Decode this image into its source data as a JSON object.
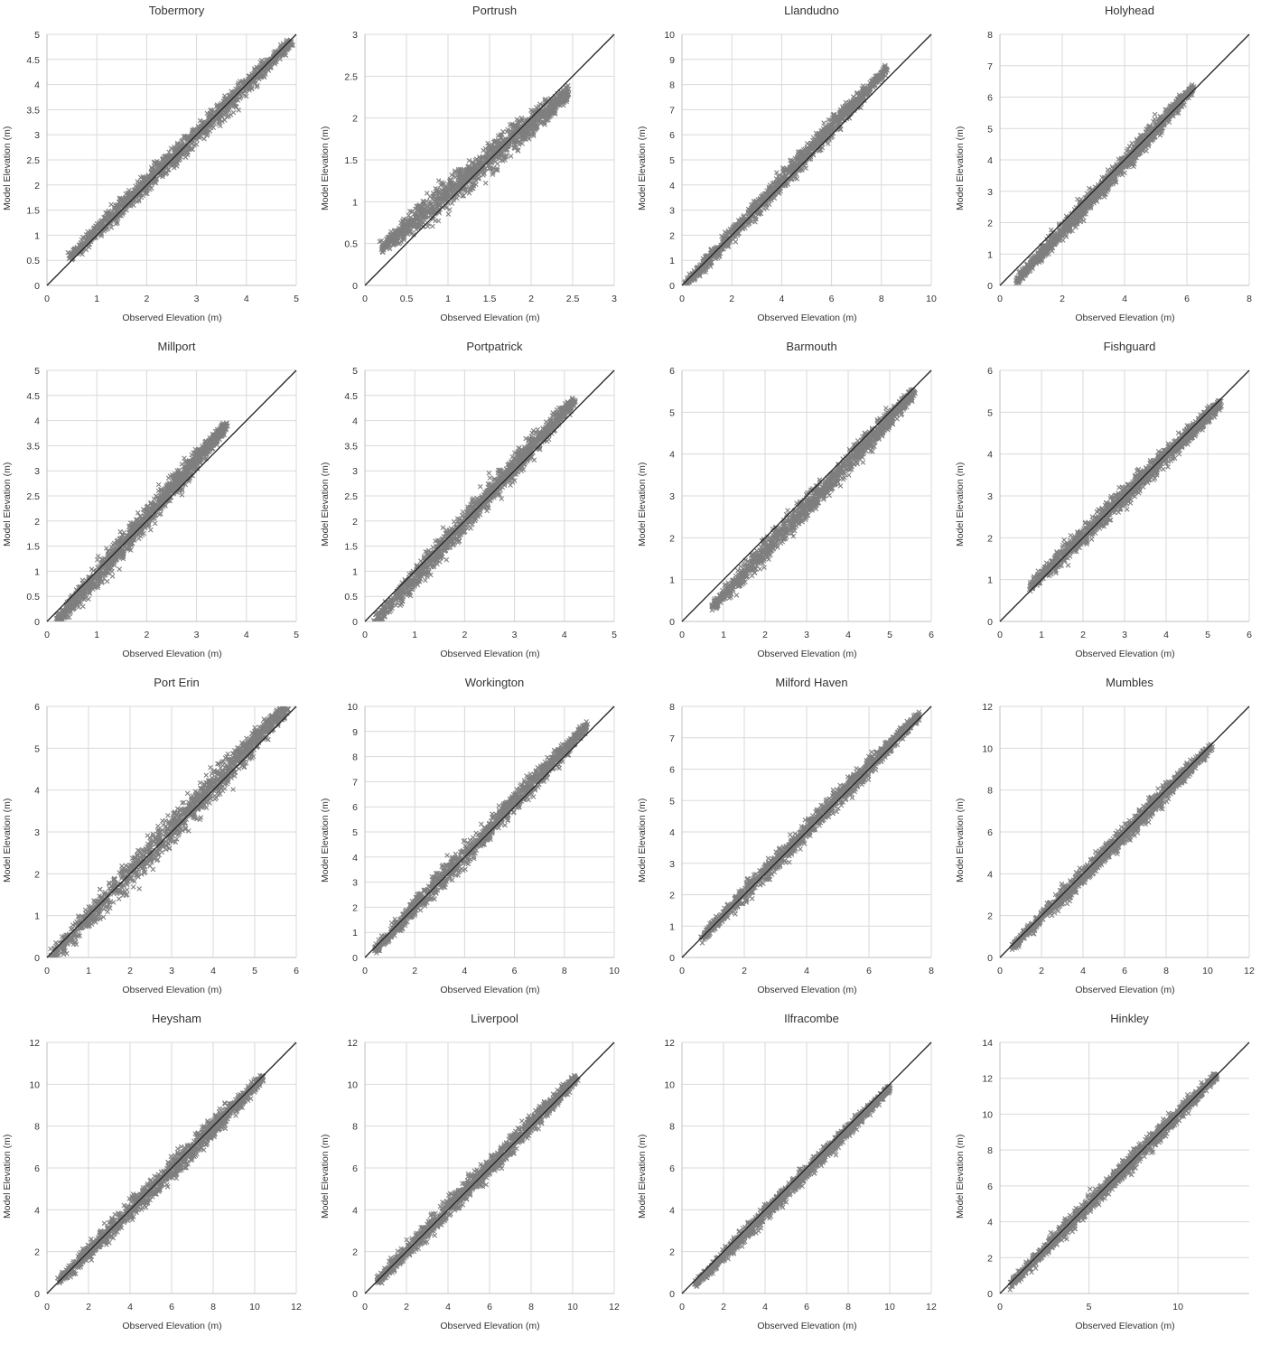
{
  "chart_data": [
    {
      "type": "scatter",
      "title": "Tobermory",
      "xlabel": "Observed Elevation (m)",
      "ylabel": "Model Elevation (m)",
      "xlim": [
        0,
        5
      ],
      "ylim": [
        0,
        5
      ],
      "xticks": [
        "0",
        "1",
        "2",
        "3",
        "4",
        "5"
      ],
      "yticks": [
        "0",
        "0.5",
        "1",
        "1.5",
        "2",
        "2.5",
        "3",
        "3.5",
        "4",
        "4.5",
        "5"
      ],
      "grid": true,
      "marker": "x",
      "color": "#7f7f7f",
      "cloud": {
        "x_range": [
          0.45,
          4.9
        ],
        "y_range": [
          0.55,
          4.85
        ],
        "spread": 0.18
      },
      "reference_line": "1:1"
    },
    {
      "type": "scatter",
      "title": "Portrush",
      "xlabel": "Observed Elevation (m)",
      "ylabel": "Model Elevation (m)",
      "xlim": [
        0,
        3
      ],
      "ylim": [
        0,
        3
      ],
      "xticks": [
        "0",
        "0.5",
        "1",
        "1.5",
        "2",
        "2.5",
        "3"
      ],
      "yticks": [
        "0",
        "0.5",
        "1",
        "1.5",
        "2",
        "2.5",
        "3"
      ],
      "grid": true,
      "marker": "x",
      "color": "#7f7f7f",
      "cloud": {
        "x_range": [
          0.2,
          2.45
        ],
        "y_range": [
          0.45,
          2.3
        ],
        "spread": 0.14
      },
      "reference_line": "1:1"
    },
    {
      "type": "scatter",
      "title": "Llandudno",
      "xlabel": "Observed Elevation (m)",
      "ylabel": "Model Elevation (m)",
      "xlim": [
        0,
        10
      ],
      "ylim": [
        0,
        10
      ],
      "xticks": [
        "0",
        "2",
        "4",
        "6",
        "8",
        "10"
      ],
      "yticks": [
        "0",
        "1",
        "2",
        "3",
        "4",
        "5",
        "6",
        "7",
        "8",
        "9",
        "10"
      ],
      "grid": true,
      "marker": "x",
      "color": "#7f7f7f",
      "cloud": {
        "x_range": [
          0.1,
          8.2
        ],
        "y_range": [
          0.0,
          8.6
        ],
        "spread": 0.3
      },
      "reference_line": "1:1"
    },
    {
      "type": "scatter",
      "title": "Holyhead",
      "xlabel": "Observed Elevation (m)",
      "ylabel": "Model Elevation (m)",
      "xlim": [
        0,
        8
      ],
      "ylim": [
        0,
        8
      ],
      "xticks": [
        "0",
        "2",
        "4",
        "6",
        "8"
      ],
      "yticks": [
        "0",
        "1",
        "2",
        "3",
        "4",
        "5",
        "6",
        "7",
        "8"
      ],
      "grid": true,
      "marker": "x",
      "color": "#7f7f7f",
      "cloud": {
        "x_range": [
          0.5,
          6.2
        ],
        "y_range": [
          0.1,
          6.3
        ],
        "spread": 0.25
      },
      "reference_line": "1:1"
    },
    {
      "type": "scatter",
      "title": "Millport",
      "xlabel": "Observed Elevation (m)",
      "ylabel": "Model Elevation (m)",
      "xlim": [
        0,
        5
      ],
      "ylim": [
        0,
        5
      ],
      "xticks": [
        "0",
        "1",
        "2",
        "3",
        "4",
        "5"
      ],
      "yticks": [
        "0",
        "0.5",
        "1",
        "1.5",
        "2",
        "2.5",
        "3",
        "3.5",
        "4",
        "4.5",
        "5"
      ],
      "grid": true,
      "marker": "x",
      "color": "#7f7f7f",
      "cloud": {
        "x_range": [
          0.2,
          3.6
        ],
        "y_range": [
          0.0,
          3.9
        ],
        "spread": 0.2
      },
      "reference_line": "1:1"
    },
    {
      "type": "scatter",
      "title": "Portpatrick",
      "xlabel": "Observed Elevation (m)",
      "ylabel": "Model Elevation (m)",
      "xlim": [
        0,
        5
      ],
      "ylim": [
        0,
        5
      ],
      "xticks": [
        "0",
        "1",
        "2",
        "3",
        "4",
        "5"
      ],
      "yticks": [
        "0",
        "0.5",
        "1",
        "1.5",
        "2",
        "2.5",
        "3",
        "3.5",
        "4",
        "4.5",
        "5"
      ],
      "grid": true,
      "marker": "x",
      "color": "#7f7f7f",
      "cloud": {
        "x_range": [
          0.2,
          4.2
        ],
        "y_range": [
          0.0,
          4.4
        ],
        "spread": 0.2
      },
      "reference_line": "1:1"
    },
    {
      "type": "scatter",
      "title": "Barmouth",
      "xlabel": "Observed Elevation (m)",
      "ylabel": "Model Elevation (m)",
      "xlim": [
        0,
        6
      ],
      "ylim": [
        0,
        6
      ],
      "xticks": [
        "0",
        "1",
        "2",
        "3",
        "4",
        "5",
        "6"
      ],
      "yticks": [
        "0",
        "1",
        "2",
        "3",
        "4",
        "5",
        "6"
      ],
      "grid": true,
      "marker": "x",
      "color": "#7f7f7f",
      "cloud": {
        "x_range": [
          0.7,
          5.6
        ],
        "y_range": [
          0.3,
          5.5
        ],
        "spread": 0.22
      },
      "reference_line": "1:1"
    },
    {
      "type": "scatter",
      "title": "Fishguard",
      "xlabel": "Observed Elevation (m)",
      "ylabel": "Model Elevation (m)",
      "xlim": [
        0,
        6
      ],
      "ylim": [
        0,
        6
      ],
      "xticks": [
        "0",
        "1",
        "2",
        "3",
        "4",
        "5",
        "6"
      ],
      "yticks": [
        "0",
        "1",
        "2",
        "3",
        "4",
        "5",
        "6"
      ],
      "grid": true,
      "marker": "x",
      "color": "#7f7f7f",
      "cloud": {
        "x_range": [
          0.7,
          5.3
        ],
        "y_range": [
          0.8,
          5.2
        ],
        "spread": 0.2
      },
      "reference_line": "1:1"
    },
    {
      "type": "scatter",
      "title": "Port Erin",
      "xlabel": "Observed Elevation (m)",
      "ylabel": "Model Elevation (m)",
      "xlim": [
        0,
        6
      ],
      "ylim": [
        0,
        6
      ],
      "xticks": [
        "0",
        "1",
        "2",
        "3",
        "4",
        "5",
        "6"
      ],
      "yticks": [
        "0",
        "1",
        "2",
        "3",
        "4",
        "5",
        "6"
      ],
      "grid": true,
      "marker": "x",
      "color": "#7f7f7f",
      "cloud": {
        "x_range": [
          0.1,
          5.8
        ],
        "y_range": [
          0.0,
          6.0
        ],
        "spread": 0.3
      },
      "reference_line": "1:1"
    },
    {
      "type": "scatter",
      "title": "Workington",
      "xlabel": "Observed Elevation (m)",
      "ylabel": "Model Elevation (m)",
      "xlim": [
        0,
        10
      ],
      "ylim": [
        0,
        10
      ],
      "xticks": [
        "0",
        "2",
        "4",
        "6",
        "8",
        "10"
      ],
      "yticks": [
        "0",
        "1",
        "2",
        "3",
        "4",
        "5",
        "6",
        "7",
        "8",
        "9",
        "10"
      ],
      "grid": true,
      "marker": "x",
      "color": "#7f7f7f",
      "cloud": {
        "x_range": [
          0.4,
          8.9
        ],
        "y_range": [
          0.3,
          9.2
        ],
        "spread": 0.35
      },
      "reference_line": "1:1"
    },
    {
      "type": "scatter",
      "title": "Milford Haven",
      "xlabel": "Observed Elevation (m)",
      "ylabel": "Model Elevation (m)",
      "xlim": [
        0,
        8
      ],
      "ylim": [
        0,
        8
      ],
      "xticks": [
        "0",
        "2",
        "4",
        "6",
        "8"
      ],
      "yticks": [
        "0",
        "1",
        "2",
        "3",
        "4",
        "5",
        "6",
        "7",
        "8"
      ],
      "grid": true,
      "marker": "x",
      "color": "#7f7f7f",
      "cloud": {
        "x_range": [
          0.6,
          7.6
        ],
        "y_range": [
          0.6,
          7.7
        ],
        "spread": 0.25
      },
      "reference_line": "1:1"
    },
    {
      "type": "scatter",
      "title": "Mumbles",
      "xlabel": "Observed Elevation (m)",
      "ylabel": "Model Elevation (m)",
      "xlim": [
        0,
        12
      ],
      "ylim": [
        0,
        12
      ],
      "xticks": [
        "0",
        "2",
        "4",
        "6",
        "8",
        "10",
        "12"
      ],
      "yticks": [
        "0",
        "2",
        "4",
        "6",
        "8",
        "10",
        "12"
      ],
      "grid": true,
      "marker": "x",
      "color": "#7f7f7f",
      "cloud": {
        "x_range": [
          0.6,
          10.2
        ],
        "y_range": [
          0.5,
          10.1
        ],
        "spread": 0.35
      },
      "reference_line": "1:1"
    },
    {
      "type": "scatter",
      "title": "Heysham",
      "xlabel": "Observed Elevation (m)",
      "ylabel": "Model Elevation (m)",
      "xlim": [
        0,
        12
      ],
      "ylim": [
        0,
        12
      ],
      "xticks": [
        "0",
        "2",
        "4",
        "6",
        "8",
        "10",
        "12"
      ],
      "yticks": [
        "0",
        "2",
        "4",
        "6",
        "8",
        "10",
        "12"
      ],
      "grid": true,
      "marker": "x",
      "color": "#7f7f7f",
      "cloud": {
        "x_range": [
          0.6,
          10.4
        ],
        "y_range": [
          0.6,
          10.3
        ],
        "spread": 0.4
      },
      "reference_line": "1:1"
    },
    {
      "type": "scatter",
      "title": "Liverpool",
      "xlabel": "Observed Elevation (m)",
      "ylabel": "Model Elevation (m)",
      "xlim": [
        0,
        12
      ],
      "ylim": [
        0,
        12
      ],
      "xticks": [
        "0",
        "2",
        "4",
        "6",
        "8",
        "10",
        "12"
      ],
      "yticks": [
        "0",
        "2",
        "4",
        "6",
        "8",
        "10",
        "12"
      ],
      "grid": true,
      "marker": "x",
      "color": "#7f7f7f",
      "cloud": {
        "x_range": [
          0.6,
          10.2
        ],
        "y_range": [
          0.6,
          10.3
        ],
        "spread": 0.4
      },
      "reference_line": "1:1"
    },
    {
      "type": "scatter",
      "title": "Ilfracombe",
      "xlabel": "Observed Elevation (m)",
      "ylabel": "Model Elevation (m)",
      "xlim": [
        0,
        12
      ],
      "ylim": [
        0,
        12
      ],
      "xticks": [
        "0",
        "2",
        "4",
        "6",
        "8",
        "10",
        "12"
      ],
      "yticks": [
        "0",
        "2",
        "4",
        "6",
        "8",
        "10",
        "12"
      ],
      "grid": true,
      "marker": "x",
      "color": "#7f7f7f",
      "cloud": {
        "x_range": [
          0.6,
          10.0
        ],
        "y_range": [
          0.4,
          9.8
        ],
        "spread": 0.3
      },
      "reference_line": "1:1"
    },
    {
      "type": "scatter",
      "title": "Hinkley",
      "xlabel": "Observed Elevation (m)",
      "ylabel": "Model Elevation (m)",
      "xlim": [
        0,
        14
      ],
      "ylim": [
        0,
        14
      ],
      "xticks": [
        "0",
        "5",
        "10"
      ],
      "yticks": [
        "0",
        "2",
        "4",
        "6",
        "8",
        "10",
        "12",
        "14"
      ],
      "grid": true,
      "marker": "x",
      "color": "#7f7f7f",
      "cloud": {
        "x_range": [
          0.5,
          12.2
        ],
        "y_range": [
          0.4,
          12.2
        ],
        "spread": 0.4
      },
      "reference_line": "1:1"
    }
  ]
}
